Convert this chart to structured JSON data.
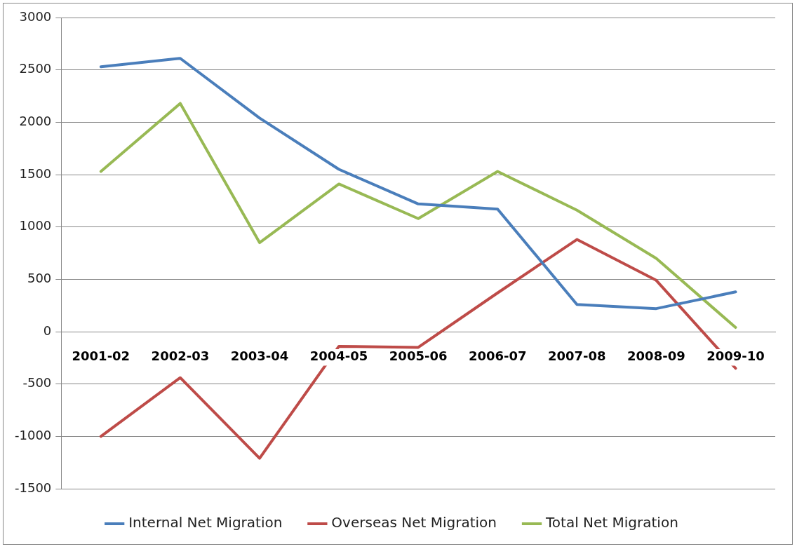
{
  "chart_data": {
    "type": "line",
    "categories": [
      "2001-02",
      "2002-03",
      "2003-04",
      "2004-05",
      "2005-06",
      "2006-07",
      "2007-08",
      "2008-09",
      "2009-10"
    ],
    "series": [
      {
        "name": "Internal Net Migration",
        "color": "#4a7ebb",
        "values": [
          2530,
          2610,
          2040,
          1550,
          1220,
          1170,
          260,
          220,
          380
        ]
      },
      {
        "name": "Overseas Net Migration",
        "color": "#be4b48",
        "values": [
          -1000,
          -440,
          -1210,
          -140,
          -150,
          370,
          880,
          490,
          -350
        ]
      },
      {
        "name": "Total Net Migration",
        "color": "#98b954",
        "values": [
          1530,
          2180,
          850,
          1410,
          1080,
          1530,
          1160,
          700,
          40
        ]
      }
    ],
    "ylim": [
      -1500,
      3000
    ],
    "yticks": [
      -1500,
      -1000,
      -500,
      0,
      500,
      1000,
      1500,
      2000,
      2500,
      3000
    ],
    "grid": "y",
    "legend": "bottom",
    "marker": "none",
    "line_style": "solid"
  }
}
